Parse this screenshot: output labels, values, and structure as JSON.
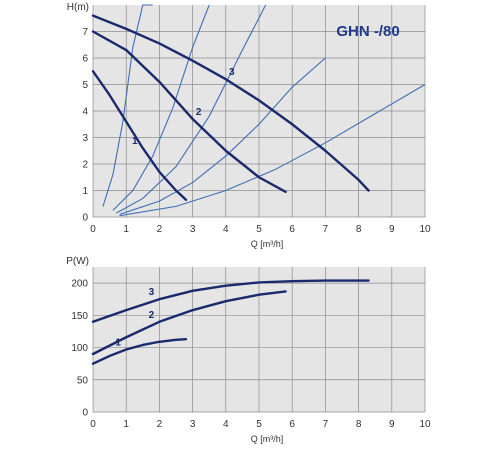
{
  "chart_data": [
    {
      "type": "line",
      "title": "GHN -/80",
      "ylabel": "H(m)",
      "xlabel": "Q [m³/h]",
      "xlim": [
        0,
        10
      ],
      "ylim": [
        0,
        8
      ],
      "x_ticks": [
        "0",
        "1",
        "2",
        "3",
        "4",
        "5",
        "6",
        "7",
        "8",
        "9",
        "10"
      ],
      "y_ticks": [
        "0",
        "1",
        "2",
        "3",
        "4",
        "5",
        "6",
        "7"
      ],
      "grid": true,
      "colors": {
        "curve": "#1a2a6c",
        "system": "#3f6fb5",
        "plot_bg": "#e5e5e5",
        "grid": "#8c8c8c"
      },
      "series": [
        {
          "name": "1",
          "x": [
            0,
            0.5,
            1.0,
            1.5,
            2.0,
            2.5,
            2.8
          ],
          "y": [
            5.5,
            4.6,
            3.6,
            2.6,
            1.7,
            1.0,
            0.65
          ]
        },
        {
          "name": "2",
          "x": [
            0,
            1.0,
            2.0,
            3.0,
            4.0,
            5.0,
            5.8
          ],
          "y": [
            7.0,
            6.3,
            5.1,
            3.7,
            2.5,
            1.5,
            0.95
          ]
        },
        {
          "name": "3",
          "x": [
            0,
            1.0,
            2.0,
            3.0,
            4.0,
            5.0,
            6.0,
            7.0,
            8.0,
            8.3
          ],
          "y": [
            7.6,
            7.1,
            6.55,
            5.9,
            5.2,
            4.4,
            3.5,
            2.5,
            1.4,
            1.0
          ]
        }
      ],
      "system_curves": [
        {
          "x": [
            0.3,
            0.6,
            0.9,
            1.2,
            1.5,
            1.8
          ],
          "y": [
            0.4,
            1.6,
            3.6,
            6.4,
            8.0,
            8.0
          ]
        },
        {
          "x": [
            0.6,
            1.2,
            1.8,
            2.4,
            3.0,
            3.5
          ],
          "y": [
            0.25,
            1.0,
            2.3,
            4.1,
            6.4,
            8.0
          ]
        },
        {
          "x": [
            0.7,
            1.5,
            2.5,
            3.5,
            4.5,
            5.2
          ],
          "y": [
            0.15,
            0.7,
            1.9,
            3.8,
            6.3,
            8.0
          ]
        },
        {
          "x": [
            0.8,
            2.0,
            3.0,
            4.0,
            5.0,
            6.0,
            7.0
          ],
          "y": [
            0.1,
            0.6,
            1.3,
            2.3,
            3.5,
            4.9,
            6.0
          ]
        },
        {
          "x": [
            0.8,
            2.5,
            4.0,
            5.5,
            7.0,
            8.5,
            10.0
          ],
          "y": [
            0.05,
            0.4,
            1.0,
            1.8,
            2.8,
            3.9,
            5.0
          ]
        }
      ]
    },
    {
      "type": "line",
      "ylabel": "P(W)",
      "xlabel": "Q [m³/h]",
      "xlim": [
        0,
        10
      ],
      "ylim": [
        0,
        225
      ],
      "x_ticks": [
        "0",
        "1",
        "2",
        "3",
        "4",
        "5",
        "6",
        "7",
        "8",
        "9",
        "10"
      ],
      "y_ticks": [
        "0",
        "50",
        "100",
        "150",
        "200"
      ],
      "grid": true,
      "colors": {
        "curve": "#1a2a6c",
        "plot_bg": "#e5e5e5",
        "grid": "#8c8c8c"
      },
      "series": [
        {
          "name": "1",
          "x": [
            0,
            0.5,
            1.0,
            1.5,
            2.0,
            2.5,
            2.8
          ],
          "y": [
            75,
            87,
            97,
            104,
            109,
            112,
            113
          ]
        },
        {
          "name": "2",
          "x": [
            0,
            1.0,
            2.0,
            3.0,
            4.0,
            5.0,
            5.8
          ],
          "y": [
            90,
            116,
            140,
            158,
            172,
            182,
            187
          ]
        },
        {
          "name": "3",
          "x": [
            0,
            1.0,
            2.0,
            3.0,
            4.0,
            5.0,
            6.0,
            7.0,
            8.0,
            8.3
          ],
          "y": [
            140,
            158,
            175,
            188,
            196,
            201,
            203,
            204,
            204,
            204
          ]
        }
      ]
    }
  ]
}
